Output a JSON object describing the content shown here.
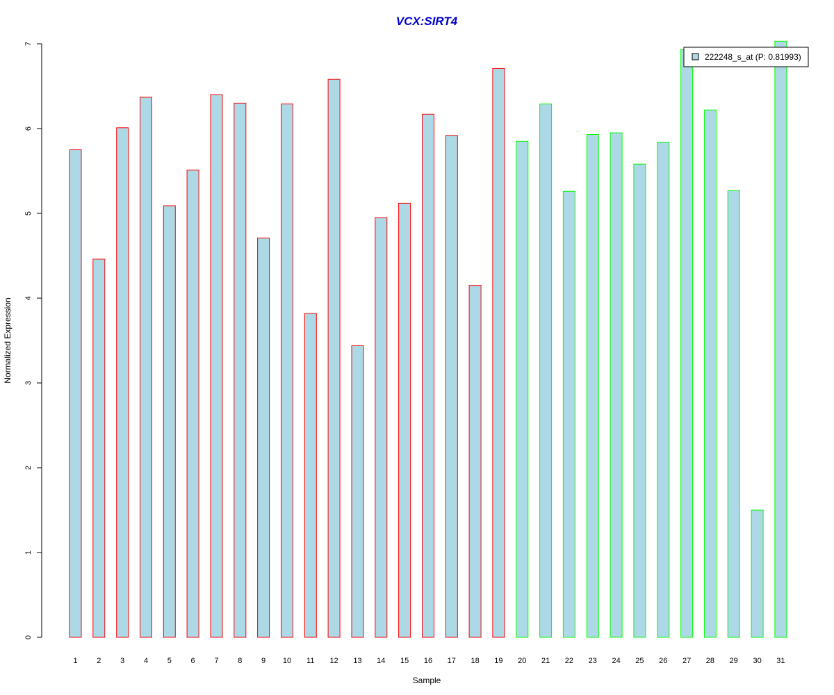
{
  "chart_data": {
    "type": "bar",
    "title": "VCX:SIRT4",
    "xlabel": "Sample",
    "ylabel": "Normalized Expression",
    "categories": [
      "1",
      "2",
      "3",
      "4",
      "5",
      "6",
      "7",
      "8",
      "9",
      "10",
      "11",
      "12",
      "13",
      "14",
      "15",
      "16",
      "17",
      "18",
      "19",
      "20",
      "21",
      "22",
      "23",
      "24",
      "25",
      "26",
      "27",
      "28",
      "29",
      "30",
      "31"
    ],
    "series": [
      {
        "name": "222248_s_at (P: 0.81993)",
        "values": [
          5.75,
          4.46,
          6.01,
          6.37,
          5.09,
          5.51,
          6.4,
          6.3,
          4.71,
          6.29,
          3.82,
          6.58,
          3.44,
          4.95,
          5.12,
          6.17,
          5.92,
          4.15,
          6.71,
          5.85,
          6.29,
          5.26,
          5.93,
          5.95,
          5.58,
          5.84,
          6.93,
          6.22,
          5.27,
          1.5,
          7.03
        ]
      }
    ],
    "ylim": [
      0,
      7
    ],
    "yticks": [
      0,
      1,
      2,
      3,
      4,
      5,
      6,
      7
    ],
    "grid": false,
    "legend_position": "top-right",
    "group_sizes": [
      19,
      12
    ],
    "colors": {
      "fill": "#add8e6",
      "group1_border": "#ff0000",
      "group2_border": "#00ff00",
      "title": "#0000cc",
      "axis": "#000000"
    }
  }
}
